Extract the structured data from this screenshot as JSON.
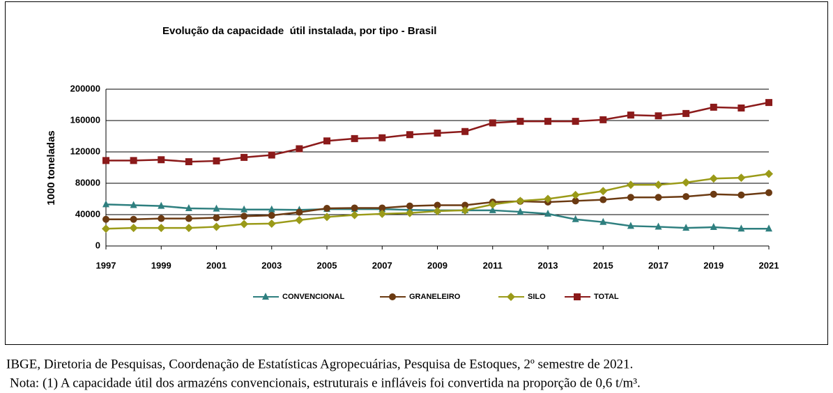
{
  "chart_data": {
    "type": "line",
    "title": "Evolução da capacidade  útil instalada, por tipo - Brasil",
    "y_label": "1000 toneladas",
    "x": [
      1997,
      1998,
      1999,
      2000,
      2001,
      2002,
      2003,
      2004,
      2005,
      2006,
      2007,
      2008,
      2009,
      2010,
      2011,
      2012,
      2013,
      2014,
      2015,
      2016,
      2017,
      2018,
      2019,
      2020,
      2021
    ],
    "xlim": [
      1997,
      2021
    ],
    "xticks": [
      1997,
      1999,
      2001,
      2003,
      2005,
      2007,
      2009,
      2011,
      2013,
      2015,
      2017,
      2019,
      2021
    ],
    "ylim": [
      0,
      200000
    ],
    "yticks": [
      0,
      40000,
      80000,
      120000,
      160000,
      200000
    ],
    "grid": true,
    "legend": "bottom",
    "series": [
      {
        "name": "CONVENCIONAL",
        "color": "#2e7f7f",
        "marker": "triangle",
        "values": [
          53000,
          52000,
          51000,
          48000,
          47500,
          46500,
          46500,
          46000,
          47000,
          47000,
          47000,
          46000,
          45500,
          45500,
          45500,
          43500,
          41000,
          34000,
          30500,
          25500,
          24500,
          23000,
          24000,
          22000,
          22000
        ]
      },
      {
        "name": "GRANELEIRO",
        "color": "#6b3a12",
        "marker": "circle",
        "values": [
          34000,
          34000,
          35000,
          35000,
          36000,
          38000,
          39000,
          43000,
          48000,
          48500,
          48500,
          51000,
          52000,
          52000,
          56000,
          57000,
          56000,
          57500,
          59000,
          62000,
          62000,
          63000,
          66000,
          65000,
          68000
        ]
      },
      {
        "name": "SILO",
        "color": "#9a9a18",
        "marker": "diamond",
        "values": [
          22000,
          23000,
          23000,
          23000,
          24500,
          28000,
          28500,
          33000,
          37000,
          39500,
          41000,
          42000,
          44500,
          45500,
          53000,
          57500,
          60000,
          65000,
          70000,
          78000,
          78000,
          81000,
          86000,
          87000,
          92000
        ]
      },
      {
        "name": "TOTAL",
        "color": "#8b1a1a",
        "marker": "square",
        "values": [
          109000,
          109000,
          110000,
          107500,
          108500,
          113000,
          116000,
          124000,
          134000,
          137000,
          138000,
          142000,
          144000,
          146000,
          157000,
          159000,
          159000,
          159000,
          161000,
          167000,
          166000,
          169000,
          177000,
          176000,
          183000
        ]
      }
    ]
  },
  "source": "IBGE, Diretoria de Pesquisas, Coordenação de Estatísticas Agropecuárias, Pesquisa de Estoques, 2º semestre de 2021.",
  "note": "Nota: (1) A capacidade útil dos armazéns convencionais, estruturais e infláveis foi convertida na proporção de 0,6 t/m³."
}
